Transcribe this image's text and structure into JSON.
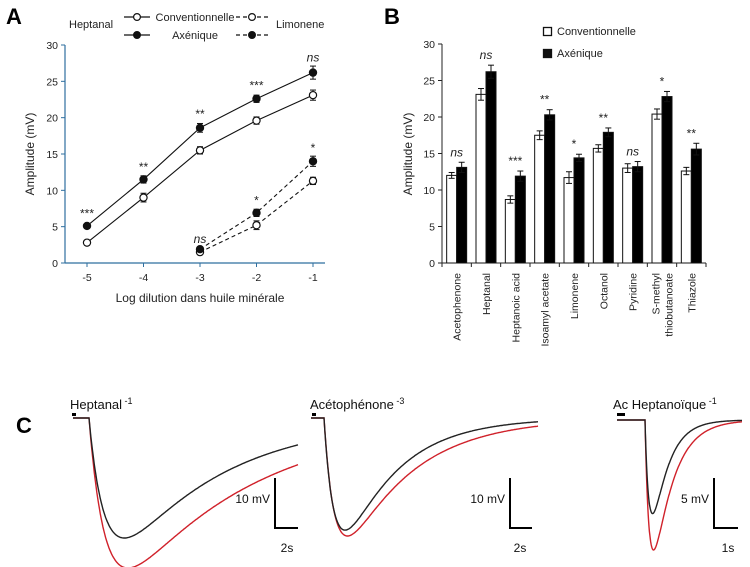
{
  "figure": {
    "panels": [
      "A",
      "B",
      "C"
    ]
  },
  "chart_data": [
    {
      "id": "A",
      "type": "line",
      "xlabel": "Log dilution dans huile minérale",
      "ylabel": "Amplitude (mV)",
      "xlim": [
        -5.35,
        -0.8
      ],
      "ylim": [
        0,
        30
      ],
      "xticks": [
        -5,
        -4,
        -3,
        -2,
        -1
      ],
      "yticks": [
        0,
        5,
        10,
        15,
        20,
        25,
        30
      ],
      "grid": false,
      "legend": {
        "placement": "top",
        "left_label": "Heptanal",
        "right_label": "Limonene",
        "entries": [
          "Conventionnelle",
          "Axénique"
        ]
      },
      "series": [
        {
          "name": "Heptanal Conventionnelle",
          "odor": "Heptanal",
          "group": "Conventionnelle",
          "style": "solid",
          "marker": "open",
          "x": [
            -5,
            -4,
            -3,
            -2,
            -1
          ],
          "y": [
            2.8,
            9.0,
            15.5,
            19.6,
            23.1
          ],
          "err": [
            0.3,
            0.6,
            0.5,
            0.5,
            0.7
          ]
        },
        {
          "name": "Heptanal Axénique",
          "odor": "Heptanal",
          "group": "Axénique",
          "style": "solid",
          "marker": "filled",
          "x": [
            -5,
            -4,
            -3,
            -2,
            -1
          ],
          "y": [
            5.1,
            11.5,
            18.6,
            22.6,
            26.2
          ],
          "err": [
            0.3,
            0.5,
            0.6,
            0.5,
            0.9
          ]
        },
        {
          "name": "Limonene Conventionnelle",
          "odor": "Limonene",
          "group": "Conventionnelle",
          "style": "dashed",
          "marker": "open",
          "x": [
            -3,
            -2,
            -1
          ],
          "y": [
            1.5,
            5.2,
            11.3
          ],
          "err": [
            0.3,
            0.6,
            0.5
          ]
        },
        {
          "name": "Limonene Axénique",
          "odor": "Limonene",
          "group": "Axénique",
          "style": "dashed",
          "marker": "filled",
          "x": [
            -3,
            -2,
            -1
          ],
          "y": [
            1.9,
            6.9,
            14.0
          ],
          "err": [
            0.3,
            0.5,
            0.7
          ]
        }
      ],
      "annotations": [
        {
          "x": -5,
          "y": 6.8,
          "text": "***"
        },
        {
          "x": -4,
          "y": 13.2,
          "text": "**"
        },
        {
          "x": -3,
          "y": 20.5,
          "text": "**"
        },
        {
          "x": -2,
          "y": 24.4,
          "text": "***"
        },
        {
          "x": -1,
          "y": 28.3,
          "text": "ns"
        },
        {
          "x": -3,
          "y": 3.3,
          "text": "ns"
        },
        {
          "x": -2,
          "y": 8.6,
          "text": "*"
        },
        {
          "x": -1,
          "y": 15.8,
          "text": "*"
        }
      ]
    },
    {
      "id": "B",
      "type": "bar",
      "ylabel": "Amplitude (mV)",
      "ylim": [
        0,
        30
      ],
      "yticks": [
        0,
        5,
        10,
        15,
        20,
        25,
        30
      ],
      "grid": false,
      "legend": {
        "placement": "top-right",
        "entries": [
          "Conventionnelle",
          "Axénique"
        ]
      },
      "categories": [
        "Acetophenone",
        "Heptanal",
        "Heptanoic acid",
        "Isoamyl acetate",
        "Limonene",
        "Octanol",
        "Pyridine",
        "S-methyl thiobutanoate",
        "Thiazole"
      ],
      "category_lines": [
        [
          "Acetophenone"
        ],
        [
          "Heptanal"
        ],
        [
          "Heptanoic acid"
        ],
        [
          "Isoamyl acetate"
        ],
        [
          "Limonene"
        ],
        [
          "Octanol"
        ],
        [
          "Pyridine"
        ],
        [
          "S-methyl",
          "thiobutanoate"
        ],
        [
          "Thiazole"
        ]
      ],
      "series": [
        {
          "name": "Conventionnelle",
          "fill": "#ffffff",
          "values": [
            12.0,
            23.1,
            8.7,
            17.5,
            11.7,
            15.7,
            13.0,
            20.4,
            12.6
          ],
          "err": [
            0.4,
            0.8,
            0.5,
            0.6,
            0.8,
            0.5,
            0.6,
            0.7,
            0.5
          ]
        },
        {
          "name": "Axénique",
          "fill": "#000000",
          "values": [
            13.1,
            26.2,
            11.9,
            20.3,
            14.4,
            17.9,
            13.2,
            22.8,
            15.6
          ],
          "err": [
            0.7,
            0.9,
            0.7,
            0.7,
            0.5,
            0.6,
            0.7,
            0.7,
            0.8
          ]
        }
      ],
      "significance": [
        "ns",
        "ns",
        "***",
        "**",
        "*",
        "**",
        "ns",
        "*",
        "**"
      ]
    },
    {
      "id": "C",
      "type": "line",
      "description": "Representative EOG traces, Conventionnelle (black) vs Axénique (red)",
      "trace_colors": {
        "Conventionnelle": "#222222",
        "Axénique": "#d0212a"
      },
      "traces": [
        {
          "label": "Heptanal",
          "exponent": "-1",
          "scale_v": "10 mV",
          "scale_t": "2s",
          "peak_black": -0.8,
          "peak_red": -1.0
        },
        {
          "label": "Acétophénone",
          "exponent": "-3",
          "scale_v": "10 mV",
          "scale_t": "2s",
          "peak_black": -0.95,
          "peak_red": -1.0
        },
        {
          "label": "Ac Heptanoïque",
          "exponent": "-1",
          "scale_v": "5 mV",
          "scale_t": "1s",
          "peak_black": -0.72,
          "peak_red": -1.0
        }
      ]
    }
  ]
}
